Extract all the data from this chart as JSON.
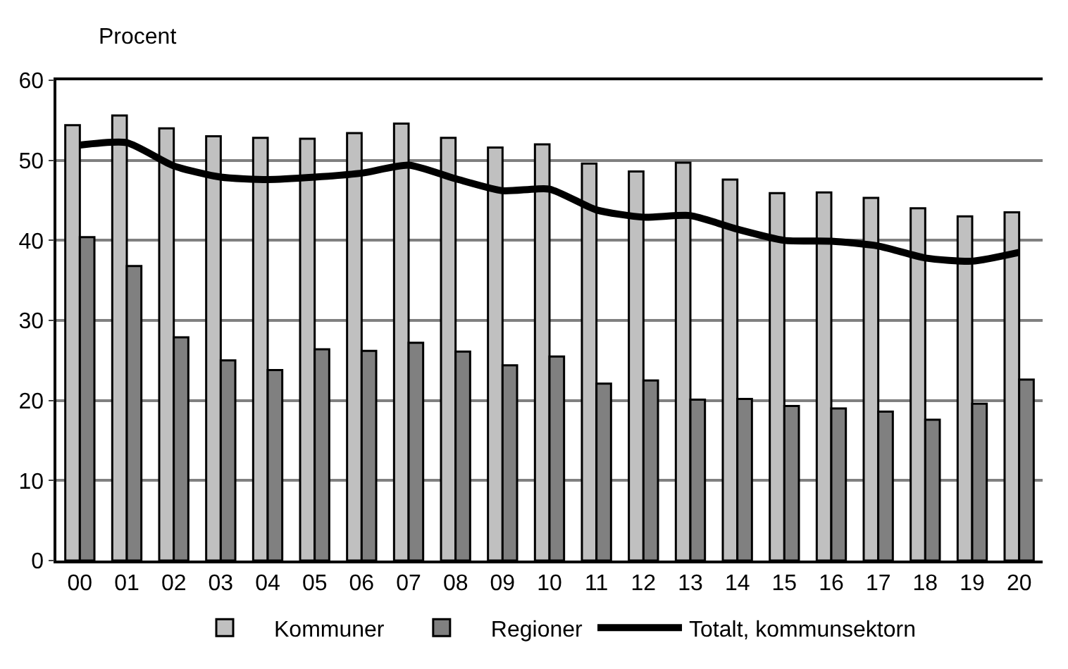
{
  "chart_data": {
    "type": "bar",
    "ylabel": "Procent",
    "categories": [
      "00",
      "01",
      "02",
      "03",
      "04",
      "05",
      "06",
      "07",
      "08",
      "09",
      "10",
      "11",
      "12",
      "13",
      "14",
      "15",
      "16",
      "17",
      "18",
      "19",
      "20"
    ],
    "series": [
      {
        "name": "Kommuner",
        "color": "#c0c0c0",
        "values": [
          54.4,
          55.6,
          54.0,
          53.0,
          52.8,
          52.7,
          53.4,
          54.6,
          52.8,
          51.6,
          52.0,
          49.6,
          48.6,
          49.7,
          47.6,
          45.9,
          46.0,
          45.3,
          44.0,
          43.0,
          43.5
        ]
      },
      {
        "name": "Regioner",
        "color": "#808080",
        "values": [
          40.4,
          36.8,
          27.9,
          25.0,
          23.8,
          26.4,
          26.2,
          27.2,
          26.1,
          24.4,
          25.5,
          22.1,
          22.5,
          20.1,
          20.2,
          19.3,
          19.0,
          18.6,
          17.6,
          19.6,
          22.6
        ]
      },
      {
        "name": "Totalt, kommunsektorn",
        "type": "line",
        "color": "#000000",
        "values": [
          51.9,
          52.2,
          49.3,
          47.9,
          47.6,
          47.9,
          48.4,
          49.4,
          47.7,
          46.2,
          46.4,
          43.8,
          42.9,
          43.1,
          41.4,
          40.0,
          39.9,
          39.3,
          37.8,
          37.4,
          38.5
        ]
      }
    ],
    "ylim": [
      0,
      60
    ],
    "yticks": [
      0,
      10,
      20,
      30,
      40,
      50,
      60
    ],
    "grid": "y",
    "legend": "bottom",
    "marker": "none",
    "line_style": "solid"
  }
}
